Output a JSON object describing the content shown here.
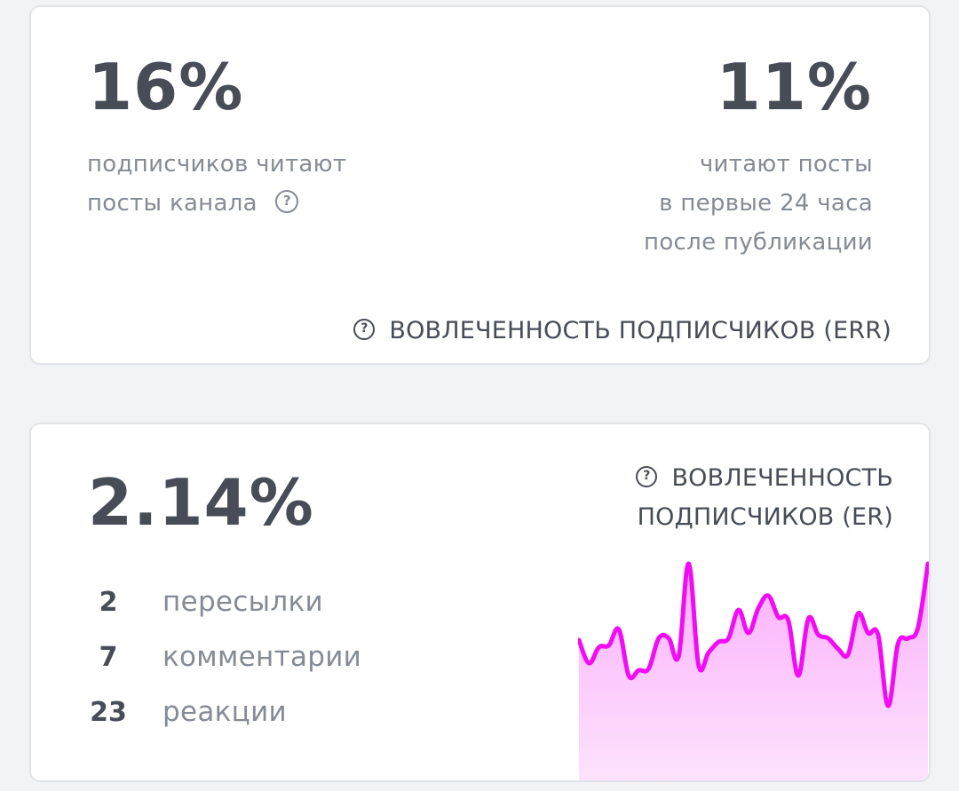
{
  "err_card": {
    "left_value": "16%",
    "left_desc_line1": "подписчиков читают",
    "left_desc_line2": "посты канала",
    "right_value": "11%",
    "right_desc_line1": "читают посты",
    "right_desc_line2": "в первые 24 часа",
    "right_desc_line3": "после публикации",
    "caption": "ВОВЛЕЧЕННОСТЬ ПОДПИСЧИКОВ (ERR)",
    "help_icon": "?"
  },
  "er_card": {
    "value": "2.14%",
    "caption_line1": "ВОВЛЕЧЕННОСТЬ",
    "caption_line2": "ПОДПИСЧИКОВ (ER)",
    "help_icon": "?",
    "stats": [
      {
        "count": "2",
        "label": "пересылки"
      },
      {
        "count": "7",
        "label": "комментарии"
      },
      {
        "count": "23",
        "label": "реакции"
      }
    ]
  },
  "colors": {
    "line": "#f20cf5",
    "fill_top": "#fbb0fb",
    "fill_bottom": "#fde3fd",
    "text_dark": "#474c56",
    "text_muted": "#858b95",
    "background": "#f2f3f6"
  },
  "chart_data": {
    "type": "area",
    "title": "ВОВЛЕЧЕННОСТЬ ПОДПИСЧИКОВ (ER)",
    "xlabel": "",
    "ylabel": "",
    "grid": false,
    "legend": "none",
    "note": "Sparkline without axes; values are relative heights (0-100) estimated from pixels",
    "x": [
      0,
      1,
      2,
      3,
      4,
      5,
      6,
      7,
      8,
      9,
      10,
      11,
      12,
      13,
      14,
      15,
      16,
      17,
      18,
      19,
      20,
      21,
      22,
      23,
      24,
      25,
      26,
      27,
      28,
      29,
      30,
      31,
      32,
      33,
      34,
      35
    ],
    "values": [
      57,
      44,
      53,
      54,
      63,
      37,
      40,
      41,
      58,
      58,
      48,
      100,
      43,
      50,
      56,
      58,
      74,
      61,
      75,
      82,
      70,
      68,
      37,
      69,
      60,
      58,
      52,
      49,
      72,
      61,
      60,
      20,
      55,
      58,
      64,
      100
    ]
  }
}
